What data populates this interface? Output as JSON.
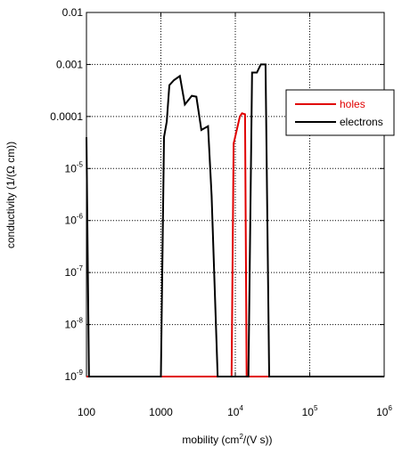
{
  "chart_data": {
    "type": "line",
    "title": "",
    "xlabel": {
      "pre": "mobility (cm",
      "sup": "2",
      "post": "/(V s))"
    },
    "ylabel": "conductivity (1/(Ω cm))",
    "x_scale": "log",
    "y_scale": "log",
    "xlim": [
      100,
      1000000
    ],
    "ylim": [
      1e-09,
      0.01
    ],
    "grid": true,
    "legend_position": "right",
    "x_ticks": [
      {
        "value": 100,
        "base": "100",
        "exp": ""
      },
      {
        "value": 1000,
        "base": "1000",
        "exp": ""
      },
      {
        "value": 10000,
        "base": "10",
        "exp": "4"
      },
      {
        "value": 100000,
        "base": "10",
        "exp": "5"
      },
      {
        "value": 1000000,
        "base": "10",
        "exp": "6"
      }
    ],
    "y_ticks": [
      {
        "value": 0.01,
        "base": "0.01",
        "exp": ""
      },
      {
        "value": 0.001,
        "base": "0.001",
        "exp": ""
      },
      {
        "value": 0.0001,
        "base": "0.0001",
        "exp": ""
      },
      {
        "value": 1e-05,
        "base": "10",
        "exp": "-5"
      },
      {
        "value": 1e-06,
        "base": "10",
        "exp": "-6"
      },
      {
        "value": 1e-07,
        "base": "10",
        "exp": "-7"
      },
      {
        "value": 1e-08,
        "base": "10",
        "exp": "-8"
      },
      {
        "value": 1e-09,
        "base": "10",
        "exp": "-9"
      }
    ],
    "series": [
      {
        "name": "holes",
        "color": "#e00000",
        "points": [
          [
            100,
            1e-09
          ],
          [
            8900,
            1e-09
          ],
          [
            9500,
            3e-05
          ],
          [
            11500,
            0.0001
          ],
          [
            12300,
            0.000115
          ],
          [
            13500,
            0.00011
          ],
          [
            14200,
            1e-09
          ],
          [
            1000000,
            1e-09
          ]
        ]
      },
      {
        "name": "electrons",
        "color": "#000000",
        "points": [
          [
            100,
            4e-05
          ],
          [
            108,
            1e-09
          ],
          [
            1000,
            1e-09
          ],
          [
            1100,
            4e-05
          ],
          [
            1200,
            8e-05
          ],
          [
            1300,
            0.0004
          ],
          [
            1500,
            0.0005
          ],
          [
            1800,
            0.0006
          ],
          [
            2100,
            0.00017
          ],
          [
            2600,
            0.00025
          ],
          [
            3000,
            0.00024
          ],
          [
            3500,
            5.5e-05
          ],
          [
            4300,
            6.5e-05
          ],
          [
            4800,
            3e-06
          ],
          [
            5800,
            1e-09
          ],
          [
            15000,
            1e-09
          ],
          [
            16800,
            0.0007
          ],
          [
            19500,
            0.0007
          ],
          [
            22000,
            0.001
          ],
          [
            25500,
            0.001
          ],
          [
            28500,
            1e-09
          ],
          [
            1000000,
            1e-09
          ]
        ]
      }
    ]
  }
}
